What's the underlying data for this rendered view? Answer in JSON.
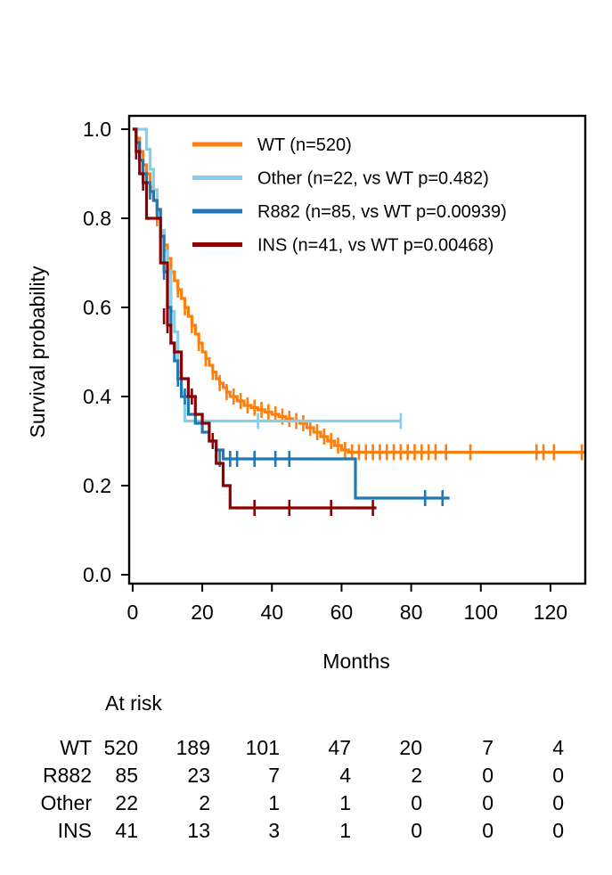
{
  "chart_data": {
    "type": "line",
    "subtype": "kaplan-meier",
    "xlabel": "Months",
    "ylabel": "Survival probability",
    "xlim": [
      -1,
      130
    ],
    "ylim": [
      -0.02,
      1.03
    ],
    "xticks": [
      0,
      20,
      40,
      60,
      80,
      100,
      120
    ],
    "yticks": [
      0.0,
      0.2,
      0.4,
      0.6,
      0.8,
      1.0
    ],
    "xtick_labels": [
      "0",
      "20",
      "40",
      "60",
      "80",
      "100",
      "120"
    ],
    "ytick_labels": [
      "0.0",
      "0.2",
      "0.4",
      "0.6",
      "0.8",
      "1.0"
    ],
    "grid": false,
    "legend_position": "top-right",
    "series": [
      {
        "name": "WT (n=520)",
        "color": "#ff7f0e",
        "steps": [
          [
            0,
            1.0
          ],
          [
            1,
            0.98
          ],
          [
            2,
            0.95
          ],
          [
            3,
            0.92
          ],
          [
            4,
            0.9
          ],
          [
            5,
            0.87
          ],
          [
            6,
            0.84
          ],
          [
            7,
            0.8
          ],
          [
            8,
            0.77
          ],
          [
            9,
            0.74
          ],
          [
            10,
            0.71
          ],
          [
            11,
            0.68
          ],
          [
            12,
            0.66
          ],
          [
            13,
            0.64
          ],
          [
            14,
            0.62
          ],
          [
            15,
            0.6
          ],
          [
            16,
            0.58
          ],
          [
            17,
            0.56
          ],
          [
            18,
            0.54
          ],
          [
            19,
            0.52
          ],
          [
            20,
            0.5
          ],
          [
            21,
            0.485
          ],
          [
            22,
            0.47
          ],
          [
            23,
            0.455
          ],
          [
            24,
            0.44
          ],
          [
            25,
            0.43
          ],
          [
            26,
            0.42
          ],
          [
            27,
            0.41
          ],
          [
            28,
            0.4
          ],
          [
            30,
            0.39
          ],
          [
            32,
            0.38
          ],
          [
            34,
            0.375
          ],
          [
            36,
            0.37
          ],
          [
            38,
            0.365
          ],
          [
            40,
            0.36
          ],
          [
            42,
            0.355
          ],
          [
            44,
            0.35
          ],
          [
            46,
            0.345
          ],
          [
            48,
            0.34
          ],
          [
            50,
            0.33
          ],
          [
            52,
            0.32
          ],
          [
            54,
            0.31
          ],
          [
            56,
            0.3
          ],
          [
            58,
            0.29
          ],
          [
            60,
            0.28
          ],
          [
            62,
            0.275
          ],
          [
            130,
            0.275
          ]
        ],
        "censors": [
          [
            3,
            0.92
          ],
          [
            5,
            0.87
          ],
          [
            7,
            0.8
          ],
          [
            9,
            0.74
          ],
          [
            11,
            0.68
          ],
          [
            13,
            0.64
          ],
          [
            15,
            0.6
          ],
          [
            17,
            0.56
          ],
          [
            19,
            0.52
          ],
          [
            21,
            0.485
          ],
          [
            23,
            0.455
          ],
          [
            25,
            0.43
          ],
          [
            27,
            0.41
          ],
          [
            29,
            0.4
          ],
          [
            31,
            0.39
          ],
          [
            33,
            0.38
          ],
          [
            35,
            0.375
          ],
          [
            37,
            0.37
          ],
          [
            39,
            0.365
          ],
          [
            41,
            0.36
          ],
          [
            43,
            0.355
          ],
          [
            45,
            0.35
          ],
          [
            47,
            0.345
          ],
          [
            49,
            0.34
          ],
          [
            51,
            0.33
          ],
          [
            53,
            0.32
          ],
          [
            55,
            0.31
          ],
          [
            57,
            0.3
          ],
          [
            59,
            0.29
          ],
          [
            61,
            0.28
          ],
          [
            63,
            0.275
          ],
          [
            65,
            0.275
          ],
          [
            67,
            0.275
          ],
          [
            69,
            0.275
          ],
          [
            71,
            0.275
          ],
          [
            73,
            0.275
          ],
          [
            75,
            0.275
          ],
          [
            77,
            0.275
          ],
          [
            79,
            0.275
          ],
          [
            81,
            0.275
          ],
          [
            83,
            0.275
          ],
          [
            85,
            0.275
          ],
          [
            87,
            0.275
          ],
          [
            90,
            0.275
          ],
          [
            97,
            0.275
          ],
          [
            116,
            0.275
          ],
          [
            118,
            0.275
          ],
          [
            121,
            0.275
          ],
          [
            129,
            0.275
          ]
        ]
      },
      {
        "name": "Other (n=22, vs WT p=0.482)",
        "color": "#87ceeb",
        "steps": [
          [
            0,
            1.0
          ],
          [
            4,
            0.955
          ],
          [
            5,
            0.91
          ],
          [
            6,
            0.864
          ],
          [
            7,
            0.818
          ],
          [
            8,
            0.773
          ],
          [
            9,
            0.727
          ],
          [
            10,
            0.682
          ],
          [
            11,
            0.591
          ],
          [
            12,
            0.545
          ],
          [
            13,
            0.455
          ],
          [
            14,
            0.409
          ],
          [
            15,
            0.345
          ],
          [
            77,
            0.345
          ]
        ],
        "censors": [
          [
            6,
            0.864
          ],
          [
            11,
            0.591
          ],
          [
            36,
            0.345
          ],
          [
            77,
            0.345
          ]
        ]
      },
      {
        "name": "R882 (n=85, vs WT p=0.00939)",
        "color": "#1f77b4",
        "steps": [
          [
            0,
            1.0
          ],
          [
            1,
            0.97
          ],
          [
            2,
            0.93
          ],
          [
            3,
            0.9
          ],
          [
            4,
            0.88
          ],
          [
            5,
            0.86
          ],
          [
            6,
            0.84
          ],
          [
            7,
            0.82
          ],
          [
            8,
            0.76
          ],
          [
            9,
            0.68
          ],
          [
            10,
            0.6
          ],
          [
            11,
            0.52
          ],
          [
            12,
            0.48
          ],
          [
            13,
            0.44
          ],
          [
            14,
            0.4
          ],
          [
            16,
            0.36
          ],
          [
            18,
            0.34
          ],
          [
            20,
            0.32
          ],
          [
            22,
            0.3
          ],
          [
            24,
            0.28
          ],
          [
            26,
            0.26
          ],
          [
            64,
            0.26
          ],
          [
            64,
            0.172
          ],
          [
            91,
            0.172
          ]
        ],
        "censors": [
          [
            3,
            0.9
          ],
          [
            5,
            0.86
          ],
          [
            7,
            0.82
          ],
          [
            9,
            0.68
          ],
          [
            13,
            0.44
          ],
          [
            15,
            0.4
          ],
          [
            25,
            0.26
          ],
          [
            28,
            0.26
          ],
          [
            30,
            0.26
          ],
          [
            35,
            0.26
          ],
          [
            41,
            0.26
          ],
          [
            45,
            0.26
          ],
          [
            84,
            0.172
          ],
          [
            89,
            0.172
          ]
        ]
      },
      {
        "name": "INS (n=41, vs WT p=0.00468)",
        "color": "#8b0000",
        "steps": [
          [
            0,
            1.0
          ],
          [
            1,
            0.95
          ],
          [
            2,
            0.9
          ],
          [
            3,
            0.88
          ],
          [
            4,
            0.8
          ],
          [
            8,
            0.7
          ],
          [
            10,
            0.56
          ],
          [
            11,
            0.52
          ],
          [
            12,
            0.5
          ],
          [
            14,
            0.44
          ],
          [
            16,
            0.4
          ],
          [
            18,
            0.36
          ],
          [
            20,
            0.34
          ],
          [
            22,
            0.3
          ],
          [
            24,
            0.25
          ],
          [
            26,
            0.2
          ],
          [
            28,
            0.15
          ],
          [
            70,
            0.15
          ]
        ],
        "censors": [
          [
            1,
            0.95
          ],
          [
            3,
            0.88
          ],
          [
            9,
            0.58
          ],
          [
            10,
            0.56
          ],
          [
            17,
            0.4
          ],
          [
            23,
            0.3
          ],
          [
            35,
            0.15
          ],
          [
            45,
            0.15
          ],
          [
            57,
            0.15
          ],
          [
            69,
            0.15
          ]
        ]
      }
    ]
  },
  "at_risk": {
    "title": "At risk",
    "rows": [
      {
        "label": "WT",
        "values": [
          "520",
          "189",
          "101",
          "47",
          "20",
          "7",
          "4"
        ]
      },
      {
        "label": "R882",
        "values": [
          "85",
          "23",
          "7",
          "4",
          "2",
          "0",
          "0"
        ]
      },
      {
        "label": "Other",
        "values": [
          "22",
          "2",
          "1",
          "1",
          "0",
          "0",
          "0"
        ]
      },
      {
        "label": "INS",
        "values": [
          "41",
          "13",
          "3",
          "1",
          "0",
          "0",
          "0"
        ]
      }
    ]
  }
}
